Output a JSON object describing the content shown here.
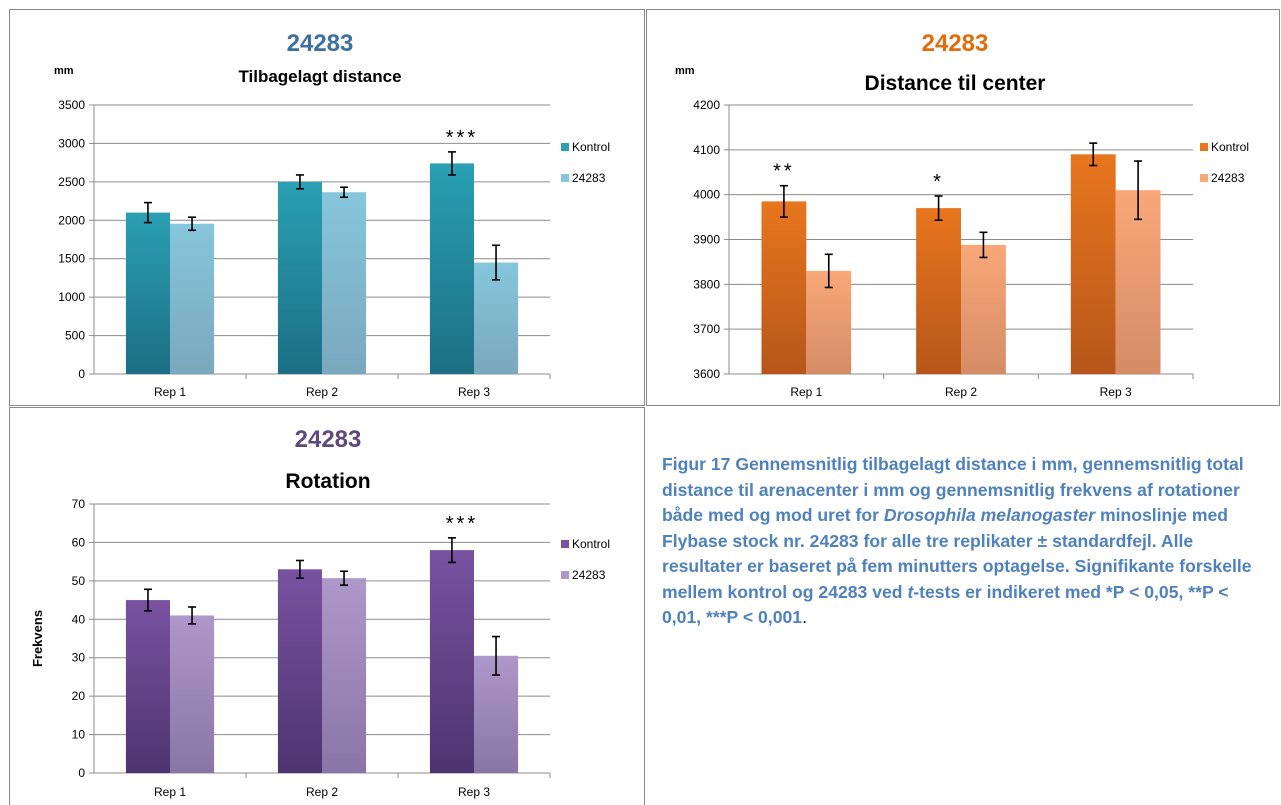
{
  "chart_data": [
    {
      "type": "bar",
      "title": "24283",
      "subtitle": "Tilbagelagt distance",
      "unit_label": "mm",
      "ylabel": "",
      "categories": [
        "Rep 1",
        "Rep 2",
        "Rep 3"
      ],
      "ylim": [
        0,
        3500
      ],
      "yticks": [
        0,
        500,
        1000,
        1500,
        2000,
        2500,
        3000,
        3500
      ],
      "grid": true,
      "legend": "right",
      "series": [
        {
          "name": "Kontrol",
          "values": [
            2100,
            2500,
            2740
          ],
          "errors": [
            130,
            90,
            150
          ],
          "color": "#2a9fb3"
        },
        {
          "name": "24283",
          "values": [
            1955,
            2365,
            1450
          ],
          "errors": [
            85,
            65,
            225
          ],
          "color": "#86c6dc"
        }
      ],
      "annotations": [
        {
          "category": "Rep 3",
          "text": "***"
        }
      ],
      "colors": {
        "title": "#3d6fa0",
        "dark": "#1c6f84",
        "light": "#7aa8bd"
      }
    },
    {
      "type": "bar",
      "title": "24283",
      "subtitle": "Distance til center",
      "unit_label": "mm",
      "ylabel": "",
      "categories": [
        "Rep 1",
        "Rep 2",
        "Rep 3"
      ],
      "ylim": [
        3600,
        4200
      ],
      "yticks": [
        3600,
        3700,
        3800,
        3900,
        4000,
        4100,
        4200
      ],
      "grid": true,
      "legend": "right",
      "series": [
        {
          "name": "Kontrol",
          "values": [
            3985,
            3970,
            4090
          ],
          "errors": [
            35,
            27,
            25
          ],
          "color": "#e8761e"
        },
        {
          "name": "24283",
          "values": [
            3830,
            3888,
            4010
          ],
          "errors": [
            37,
            28,
            65
          ],
          "color": "#f9a878"
        }
      ],
      "annotations": [
        {
          "category": "Rep 1",
          "text": "**"
        },
        {
          "category": "Rep 2",
          "text": "*"
        }
      ],
      "colors": {
        "title": "#e36c0a",
        "dark": "#b6561a",
        "light": "#d58c66"
      }
    },
    {
      "type": "bar",
      "title": "24283",
      "subtitle": "Rotation",
      "unit_label": "",
      "ylabel": "Frekvens",
      "categories": [
        "Rep 1",
        "Rep 2",
        "Rep 3"
      ],
      "ylim": [
        0,
        70
      ],
      "yticks": [
        0,
        10,
        20,
        30,
        40,
        50,
        60,
        70
      ],
      "grid": true,
      "legend": "right",
      "series": [
        {
          "name": "Kontrol",
          "values": [
            45,
            53,
            58
          ],
          "errors": [
            2.8,
            2.3,
            3.2
          ],
          "color": "#7952a0"
        },
        {
          "name": "24283",
          "values": [
            41,
            50.7,
            30.5
          ],
          "errors": [
            2.2,
            1.8,
            5.0
          ],
          "color": "#ad98c9"
        }
      ],
      "annotations": [
        {
          "category": "Rep 3",
          "text": "***"
        }
      ],
      "colors": {
        "title": "#5f497a",
        "dark": "#4d3470",
        "light": "#8a76a6"
      }
    }
  ],
  "caption": {
    "part1": "Figur 17 Gennemsnitlig tilbagelagt distance i mm, gennemsnitlig total distance til arenacenter i mm og gennemsnitlig frekvens af rotationer både med og mod uret for ",
    "species": "Drosophila melanogaster",
    "part2": " minoslinje med Flybase stock nr. 24283 for alle tre replikater ± standardfejl. Alle resultater er baseret på fem minutters optagelse. Signifikante forskelle mellem kontrol og 24283 ved ",
    "t": "t",
    "part3": "-tests er indikeret med *P < 0,05, **P < 0,01, ***P < 0,001",
    "end": "."
  }
}
